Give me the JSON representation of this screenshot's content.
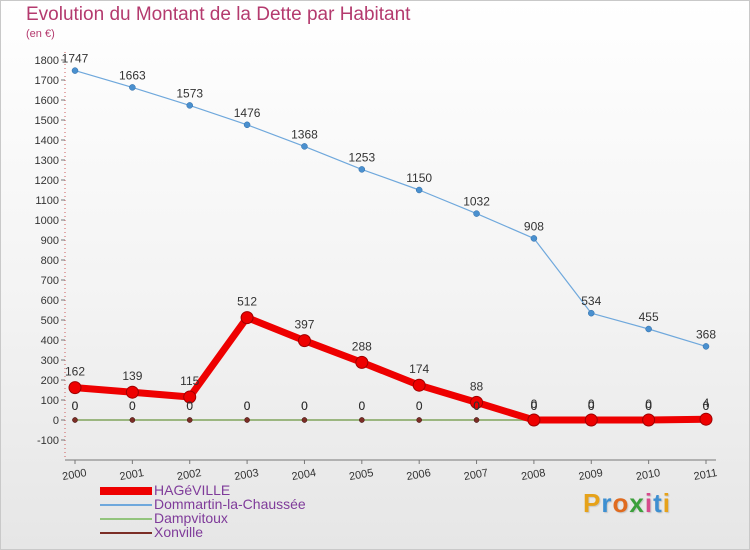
{
  "title": "Evolution du Montant de la Dette par Habitant",
  "subtitle": "(en €)",
  "logo": {
    "letters": [
      "P",
      "r",
      "o",
      "x",
      "i",
      "t",
      "i"
    ],
    "colors": [
      "#e6a21a",
      "#3d8fd1",
      "#e06b1f",
      "#3ca03c",
      "#d64a8c",
      "#3d8fd1",
      "#e6a21a"
    ]
  },
  "chart_data": {
    "type": "line",
    "x": [
      "2000",
      "2001",
      "2002",
      "2003",
      "2004",
      "2005",
      "2006",
      "2007",
      "2008",
      "2009",
      "2010",
      "2011"
    ],
    "ylim": [
      -100,
      1800
    ],
    "yticks": [
      "-100",
      "0",
      "100",
      "200",
      "300",
      "400",
      "500",
      "600",
      "700",
      "800",
      "900",
      "1000",
      "1100",
      "1200",
      "1300",
      "1400",
      "1500",
      "1600",
      "1700",
      "1800"
    ],
    "grid": false,
    "legend_position": "bottom-left",
    "series": [
      {
        "name": "HAGéVILLE",
        "color": "#ee0000",
        "values": [
          162,
          139,
          115,
          512,
          397,
          288,
          174,
          88,
          0,
          0,
          0,
          4
        ],
        "labels": [
          "162",
          "139",
          "115",
          "512",
          "397",
          "288",
          "174",
          "88",
          "0",
          "0",
          "0",
          "4"
        ]
      },
      {
        "name": "Dommartin-la-Chaussée",
        "color": "#6fa8dc",
        "values": [
          1747,
          1663,
          1573,
          1476,
          1368,
          1253,
          1150,
          1032,
          908,
          534,
          455,
          368
        ],
        "labels": [
          "1747",
          "1663",
          "1573",
          "1476",
          "1368",
          "1253",
          "1150",
          "1032",
          "908",
          "534",
          "455",
          "368"
        ]
      },
      {
        "name": "Dampvitoux",
        "color": "#93c47d",
        "values": [
          0,
          0,
          0,
          0,
          0,
          0,
          0,
          0,
          0,
          0,
          0,
          0
        ],
        "labels": [
          "0",
          "0",
          "0",
          "0",
          "0",
          "0",
          "0",
          "0",
          "0",
          "0",
          "0",
          "0"
        ]
      },
      {
        "name": "Xonville",
        "color": "#7b2d26",
        "values": [
          0,
          0,
          0,
          0,
          0,
          0,
          0,
          0,
          0,
          0,
          0,
          0
        ],
        "labels": [
          "0",
          "0",
          "0",
          "0",
          "0",
          "0",
          "0",
          "0",
          "0",
          "0",
          "0",
          "0"
        ]
      }
    ]
  }
}
